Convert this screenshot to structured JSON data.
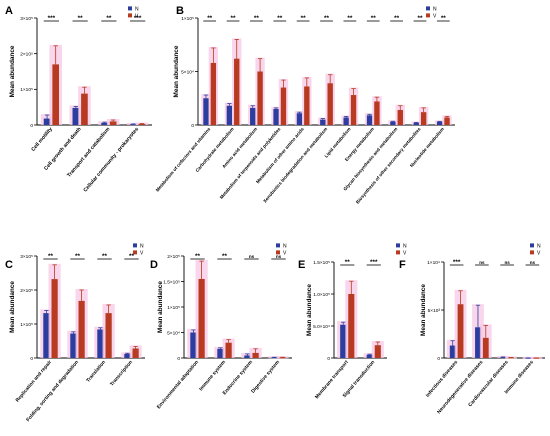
{
  "colors": {
    "N": "#2b3ea0",
    "V": "#b73a21",
    "shadow": "#f7c8e6"
  },
  "chart_data": [
    {
      "panel": "A",
      "type": "bar",
      "ylabel": "Mean abundance",
      "yticks": [
        "0",
        "1×10⁵",
        "2×10⁵",
        "3×10⁵"
      ],
      "ylim": [
        0,
        300000
      ],
      "legend": [
        "N",
        "V"
      ],
      "categories": [
        "Cell motility",
        "Cell growth and death",
        "Transport and catabolism",
        "Cellular community - prokaryotes"
      ],
      "series": [
        {
          "name": "N",
          "values": [
            18000,
            48000,
            6000,
            2000
          ],
          "errors": [
            10000,
            4000,
            2000,
            1000
          ]
        },
        {
          "name": "V",
          "values": [
            170000,
            88000,
            10000,
            3000
          ],
          "errors": [
            52000,
            18000,
            4000,
            1000
          ]
        }
      ],
      "significance": [
        "***",
        "**",
        "**",
        "***"
      ]
    },
    {
      "panel": "B",
      "type": "bar",
      "ylabel": "Mean abundance",
      "yticks": [
        "0",
        "5×10⁴",
        "1×10⁵"
      ],
      "ylim": [
        0,
        100000
      ],
      "legend": [
        "N",
        "V"
      ],
      "categories": [
        "Metabolism of cofactors and vitamins",
        "Carbohydrate metabolism",
        "Amino acid metabolism",
        "Metabolism of terpenoids and polyketides",
        "Metabolism of other amino acids",
        "Xenobiotics biodegradation and metabolism",
        "Lipid metabolism",
        "Energy metabolism",
        "Glycan biosynthesis and metabolism",
        "Biosynthesis of other secondary metabolites",
        "Nucleotide metabolism"
      ],
      "series": [
        {
          "name": "N",
          "values": [
            25000,
            18000,
            16000,
            15000,
            11000,
            5000,
            7000,
            9000,
            3000,
            2000,
            3000
          ],
          "errors": [
            3000,
            2000,
            2000,
            1000,
            1000,
            1000,
            1000,
            1000,
            500,
            400,
            400
          ]
        },
        {
          "name": "V",
          "values": [
            58000,
            62000,
            50000,
            35000,
            36000,
            39000,
            28000,
            22000,
            14000,
            12000,
            7000
          ],
          "errors": [
            14000,
            18000,
            12000,
            7000,
            8000,
            8000,
            6000,
            4000,
            4000,
            4000,
            1000
          ]
        }
      ],
      "significance": [
        "**",
        "**",
        "**",
        "**",
        "**",
        "**",
        "**",
        "**",
        "**",
        "**",
        "**"
      ]
    },
    {
      "panel": "C",
      "type": "bar",
      "ylabel": "Mean abundance",
      "yticks": [
        "0",
        "1×10⁵",
        "2×10⁵",
        "3×10⁵"
      ],
      "ylim": [
        0,
        300000
      ],
      "legend": [
        "N",
        "V"
      ],
      "categories": [
        "Replication and repair",
        "Folding, sorting and degradation",
        "Translation",
        "Transcription"
      ],
      "series": [
        {
          "name": "N",
          "values": [
            132000,
            72000,
            84000,
            12000
          ],
          "errors": [
            8000,
            5000,
            5000,
            2000
          ]
        },
        {
          "name": "V",
          "values": [
            232000,
            168000,
            132000,
            28000
          ],
          "errors": [
            42000,
            32000,
            24000,
            6000
          ]
        }
      ],
      "significance": [
        "**",
        "**",
        "**",
        "**"
      ]
    },
    {
      "panel": "D",
      "type": "bar",
      "ylabel": "Mean abundance",
      "yticks": [
        "0",
        "5×10⁴",
        "1×10⁵",
        "1.5×10⁵",
        "2×10⁵"
      ],
      "ylim": [
        0,
        200000
      ],
      "legend": [
        "N",
        "V"
      ],
      "categories": [
        "Environmental adaptation",
        "Immune system",
        "Endocrine system",
        "Digestive system"
      ],
      "series": [
        {
          "name": "N",
          "values": [
            50000,
            18000,
            5000,
            1000
          ],
          "errors": [
            5000,
            2000,
            3000,
            500
          ]
        },
        {
          "name": "V",
          "values": [
            155000,
            30000,
            10000,
            1000
          ],
          "errors": [
            35000,
            6000,
            8000,
            500
          ]
        }
      ],
      "significance": [
        "**",
        "**",
        "ns",
        "ns"
      ]
    },
    {
      "panel": "E",
      "type": "bar",
      "ylabel": "Mean abundance",
      "yticks": [
        "0",
        "5.0×10⁴",
        "1.0×10⁵",
        "1.5×10⁵"
      ],
      "ylim": [
        0,
        150000
      ],
      "legend": [
        "N",
        "V"
      ],
      "categories": [
        "Membrane transport",
        "Signal transduction"
      ],
      "series": [
        {
          "name": "N",
          "values": [
            52000,
            5000
          ],
          "errors": [
            4000,
            1000
          ]
        },
        {
          "name": "V",
          "values": [
            100000,
            20000
          ],
          "errors": [
            20000,
            5000
          ]
        }
      ],
      "significance": [
        "**",
        "***"
      ]
    },
    {
      "panel": "F",
      "type": "bar",
      "ylabel": "Mean abundance",
      "yticks": [
        "0",
        "5×10³",
        "1×10⁴"
      ],
      "ylim": [
        0,
        10000
      ],
      "legend": [
        "N",
        "V"
      ],
      "categories": [
        "Infectious diseases",
        "Neurodegenerative diseases",
        "Cardiovascular diseases",
        "Immune diseases"
      ],
      "series": [
        {
          "name": "N",
          "values": [
            1300,
            3200,
            80,
            10
          ],
          "errors": [
            500,
            2300,
            30,
            5
          ]
        },
        {
          "name": "V",
          "values": [
            5600,
            2100,
            40,
            10
          ],
          "errors": [
            1400,
            1300,
            20,
            5
          ]
        }
      ],
      "significance": [
        "***",
        "ns",
        "ns",
        "ns"
      ]
    }
  ]
}
